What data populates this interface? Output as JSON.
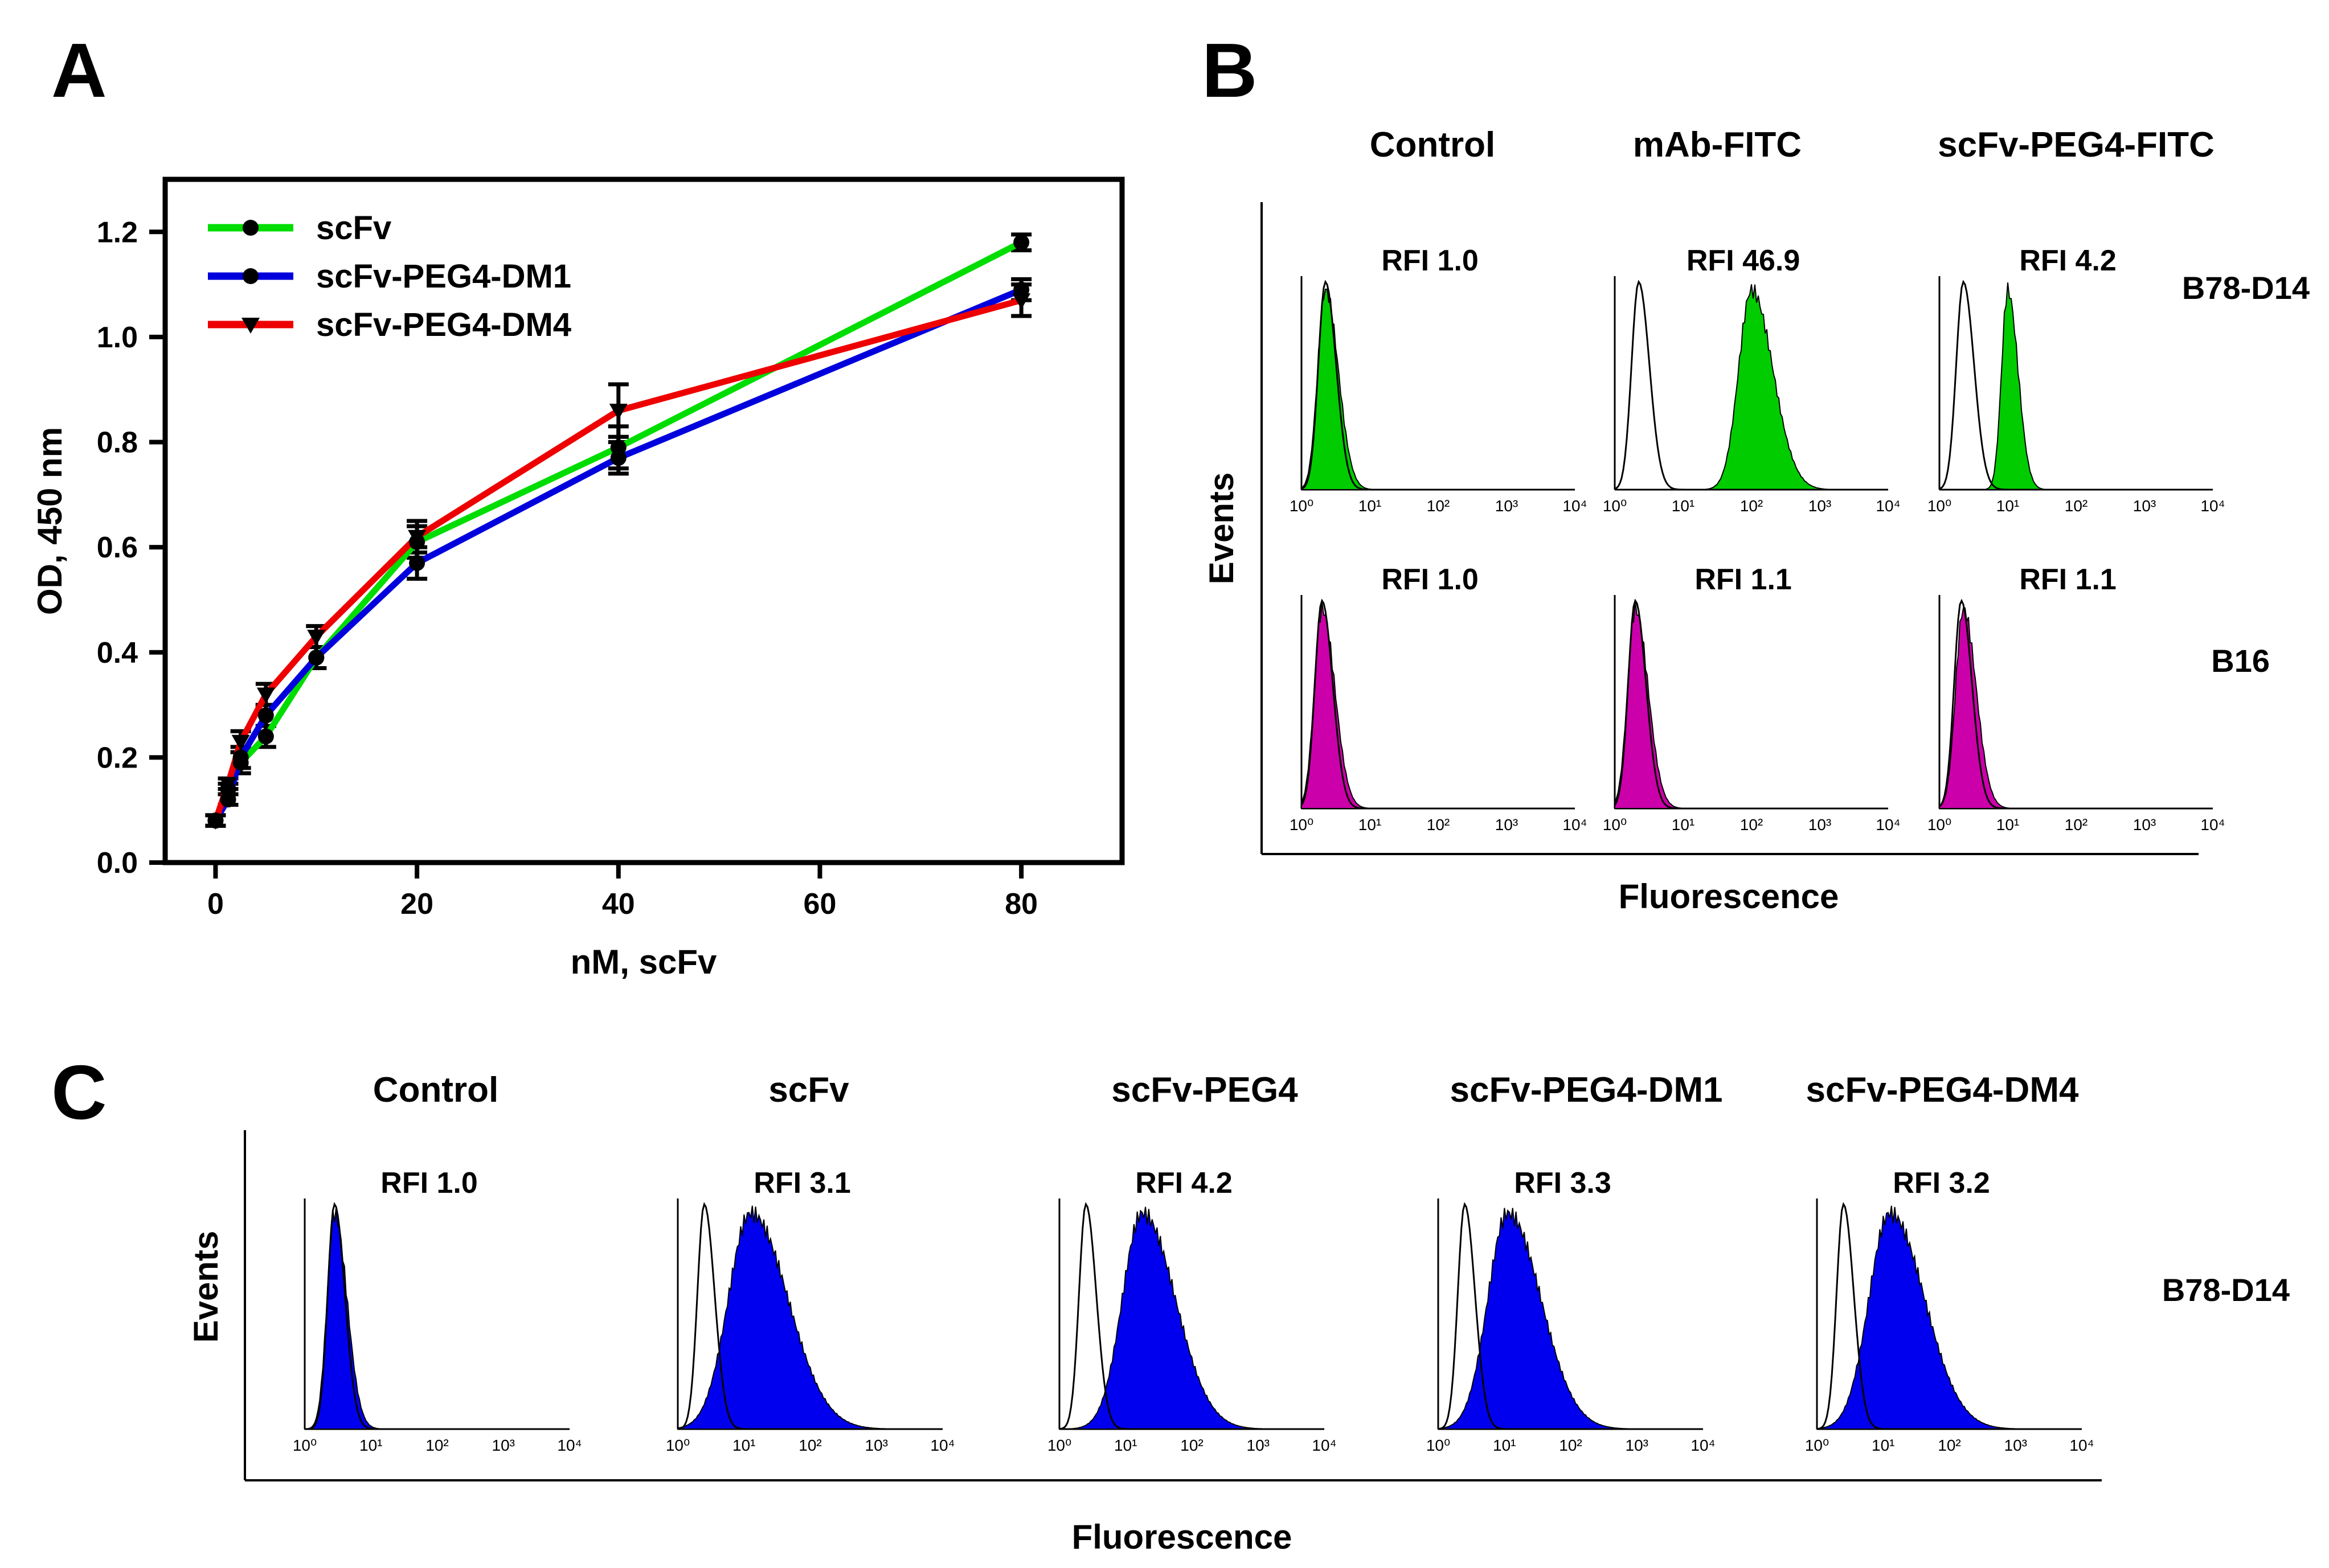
{
  "chart_data": [
    {
      "panel": "A",
      "type": "line",
      "xlabel": "nM, scFv",
      "ylabel": "OD, 450 nm",
      "xlim": [
        -5,
        90
      ],
      "ylim": [
        0,
        1.3
      ],
      "xticks": [
        0,
        20,
        40,
        60,
        80
      ],
      "yticks": [
        0.0,
        0.2,
        0.4,
        0.6,
        0.8,
        1.0,
        1.2
      ],
      "ytick_labels": [
        "0.0",
        "0.2",
        "0.4",
        "0.6",
        "0.8",
        "1.0",
        "1.2"
      ],
      "legend_position": "top-left",
      "x": [
        0,
        1.25,
        2.5,
        5,
        10,
        20,
        40,
        80
      ],
      "series": [
        {
          "name": "scFv",
          "color": "#00dd00",
          "marker": "circle",
          "values": [
            0.08,
            0.14,
            0.19,
            0.24,
            0.39,
            0.61,
            0.79,
            1.18
          ],
          "errors": [
            0.01,
            0.01,
            0.02,
            0.02,
            0.02,
            0.03,
            0.04,
            0.015
          ]
        },
        {
          "name": "scFv-PEG4-DM1",
          "color": "#0000dd",
          "marker": "circle",
          "values": [
            0.08,
            0.12,
            0.2,
            0.28,
            0.39,
            0.57,
            0.77,
            1.09
          ],
          "errors": [
            0.01,
            0.01,
            0.02,
            0.02,
            0.02,
            0.03,
            0.03,
            0.02
          ]
        },
        {
          "name": "scFv-PEG4-DM4",
          "color": "#ee0000",
          "marker": "triangle-down",
          "values": [
            0.08,
            0.15,
            0.23,
            0.32,
            0.43,
            0.62,
            0.86,
            1.07
          ],
          "errors": [
            0.01,
            0.01,
            0.02,
            0.02,
            0.02,
            0.03,
            0.05,
            0.03
          ]
        }
      ]
    },
    {
      "panel": "B",
      "type": "histogram",
      "xlabel": "Fluorescence",
      "ylabel": "Events",
      "x_scale": "log",
      "xlim": [
        1,
        10000
      ],
      "xtick_labels": [
        "10⁰",
        "10¹",
        "10²",
        "10³",
        "10⁴"
      ],
      "columns": [
        "Control",
        "mAb-FITC",
        "scFv-PEG4-FITC"
      ],
      "rows": [
        "B78-D14",
        "B16"
      ],
      "cells": [
        {
          "row": "B78-D14",
          "column": "Control",
          "rfi": "RFI 1.0",
          "fill": "#00cc00",
          "peak_log10": 0.35,
          "spread": 0.15,
          "control_peak_log10": 0.35
        },
        {
          "row": "B78-D14",
          "column": "mAb-FITC",
          "rfi": "RFI 46.9",
          "fill": "#00cc00",
          "peak_log10": 2.0,
          "spread": 0.25,
          "control_peak_log10": 0.35
        },
        {
          "row": "B78-D14",
          "column": "scFv-PEG4-FITC",
          "rfi": "RFI 4.2",
          "fill": "#00cc00",
          "peak_log10": 1.0,
          "spread": 0.12,
          "control_peak_log10": 0.35
        },
        {
          "row": "B16",
          "column": "Control",
          "rfi": "RFI 1.0",
          "fill": "#cc00aa",
          "peak_log10": 0.3,
          "spread": 0.15,
          "control_peak_log10": 0.3
        },
        {
          "row": "B16",
          "column": "mAb-FITC",
          "rfi": "RFI 1.1",
          "fill": "#cc00aa",
          "peak_log10": 0.3,
          "spread": 0.15,
          "control_peak_log10": 0.3
        },
        {
          "row": "B16",
          "column": "scFv-PEG4-FITC",
          "rfi": "RFI 1.1",
          "fill": "#cc00aa",
          "peak_log10": 0.35,
          "spread": 0.15,
          "control_peak_log10": 0.32
        }
      ]
    },
    {
      "panel": "C",
      "type": "histogram",
      "xlabel": "Fluorescence",
      "ylabel": "Events",
      "x_scale": "log",
      "xlim": [
        1,
        10000
      ],
      "xtick_labels": [
        "10⁰",
        "10¹",
        "10²",
        "10³",
        "10⁴"
      ],
      "row": "B78-D14",
      "columns": [
        "Control",
        "scFv",
        "scFv-PEG4",
        "scFv-PEG4-DM1",
        "scFv-PEG4-DM4"
      ],
      "cells": [
        {
          "column": "Control",
          "rfi": "RFI 1.0",
          "fill": "#0000ee",
          "peak_log10": 0.45,
          "spread": 0.15,
          "control_peak_log10": 0.45
        },
        {
          "column": "scFv",
          "rfi": "RFI 3.1",
          "fill": "#0000ee",
          "peak_log10": 1.1,
          "spread": 0.45,
          "control_peak_log10": 0.4
        },
        {
          "column": "scFv-PEG4",
          "rfi": "RFI 4.2",
          "fill": "#0000ee",
          "peak_log10": 1.25,
          "spread": 0.4,
          "control_peak_log10": 0.4
        },
        {
          "column": "scFv-PEG4-DM1",
          "rfi": "RFI 3.3",
          "fill": "#0000ee",
          "peak_log10": 1.05,
          "spread": 0.4,
          "control_peak_log10": 0.4
        },
        {
          "column": "scFv-PEG4-DM4",
          "rfi": "RFI 3.2",
          "fill": "#0000ee",
          "peak_log10": 1.1,
          "spread": 0.42,
          "control_peak_log10": 0.4
        }
      ]
    }
  ],
  "panels": {
    "a": "A",
    "b": "B",
    "c": "C"
  }
}
